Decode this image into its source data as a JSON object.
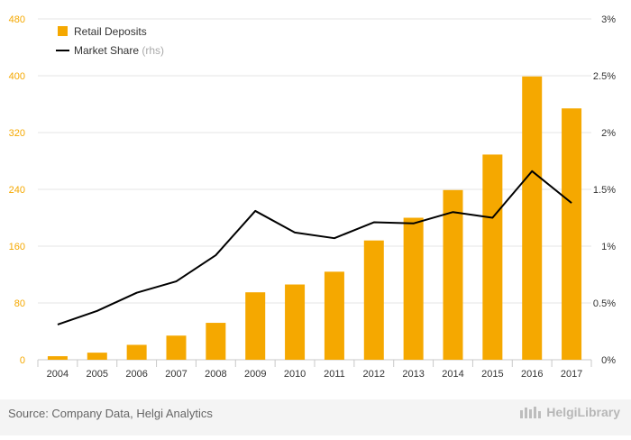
{
  "chart_data": {
    "type": "bar",
    "categories": [
      "2004",
      "2005",
      "2006",
      "2007",
      "2008",
      "2009",
      "2010",
      "2011",
      "2012",
      "2013",
      "2014",
      "2015",
      "2016",
      "2017"
    ],
    "series": [
      {
        "name": "Retail Deposits",
        "type": "bar",
        "axis": "left",
        "color": "#f5a800",
        "values": [
          5,
          10,
          21,
          34,
          52,
          95,
          106,
          124,
          168,
          200,
          239,
          289,
          399,
          354
        ]
      },
      {
        "name": "Market Share",
        "name_suffix": "(rhs)",
        "type": "line",
        "axis": "right",
        "color": "#000000",
        "values": [
          0.31,
          0.43,
          0.59,
          0.69,
          0.92,
          1.31,
          1.12,
          1.07,
          1.21,
          1.2,
          1.3,
          1.25,
          1.66,
          1.38
        ]
      }
    ],
    "y_left": {
      "min": 0,
      "max": 480,
      "ticks": [
        "0",
        "80",
        "160",
        "240",
        "320",
        "400",
        "480"
      ],
      "tick_color": "#f5a800"
    },
    "y_right": {
      "min": 0,
      "max": 3,
      "ticks": [
        "0%",
        "0.5%",
        "1%",
        "1.5%",
        "2%",
        "2.5%",
        "3%"
      ]
    },
    "grid": true,
    "legend_position": "top-left"
  },
  "footer": {
    "source": "Source: Company Data, Helgi Analytics",
    "brand": "HelgiLibrary"
  }
}
